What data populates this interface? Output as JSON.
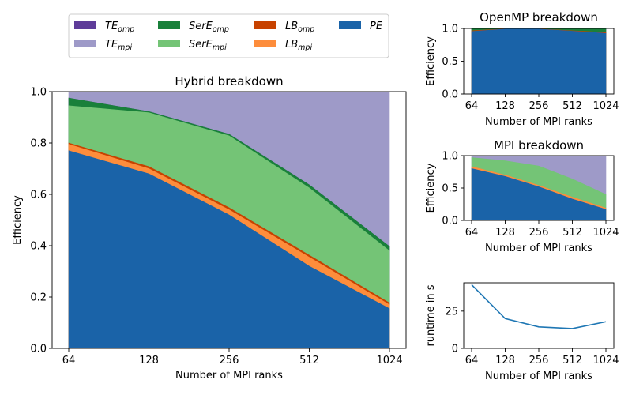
{
  "colors": {
    "TE_omp": "#5e3c99",
    "TE_mpi": "#9e9ac8",
    "SerE_omp": "#19803a",
    "SerE_mpi": "#74c476",
    "LB_omp": "#c74200",
    "LB_mpi": "#fd8d3c",
    "PE": "#1a63a8",
    "runtime": "#1f77b4"
  },
  "legend": {
    "items": [
      {
        "key": "TE_omp",
        "main": "TE",
        "sub": "omp"
      },
      {
        "key": "TE_mpi",
        "main": "TE",
        "sub": "mpi"
      },
      {
        "key": "SerE_omp",
        "main": "SerE",
        "sub": "omp"
      },
      {
        "key": "SerE_mpi",
        "main": "SerE",
        "sub": "mpi"
      },
      {
        "key": "LB_omp",
        "main": "LB",
        "sub": "omp"
      },
      {
        "key": "LB_mpi",
        "main": "LB",
        "sub": "mpi"
      },
      {
        "key": "PE",
        "main": "PE",
        "sub": ""
      }
    ]
  },
  "chart_data": [
    {
      "id": "hybrid",
      "type": "area",
      "title": "Hybrid breakdown",
      "xlabel": "Number of MPI ranks",
      "ylabel": "Efficiency",
      "categories": [
        "64",
        "128",
        "256",
        "512",
        "1024"
      ],
      "ylim": [
        0,
        1.0
      ],
      "yticks": [
        "0.0",
        "0.2",
        "0.4",
        "0.6",
        "0.8",
        "1.0"
      ],
      "ytick_values": [
        0,
        0.2,
        0.4,
        0.6,
        0.8,
        1.0
      ],
      "stack_tops": [
        {
          "name": "TE_mpi",
          "values": [
            1.0,
            1.0,
            1.0,
            1.0,
            1.0
          ]
        },
        {
          "name": "TE_omp",
          "values": [
            0.975,
            0.922,
            0.834,
            0.637,
            0.397
          ]
        },
        {
          "name": "SerE_omp",
          "values": [
            0.975,
            0.922,
            0.834,
            0.637,
            0.397
          ]
        },
        {
          "name": "SerE_mpi",
          "values": [
            0.945,
            0.918,
            0.828,
            0.625,
            0.38
          ]
        },
        {
          "name": "LB_omp",
          "values": [
            0.8,
            0.708,
            0.548,
            0.363,
            0.177
          ]
        },
        {
          "name": "LB_mpi",
          "values": [
            0.795,
            0.7,
            0.54,
            0.355,
            0.17
          ]
        },
        {
          "name": "PE",
          "values": [
            0.77,
            0.68,
            0.52,
            0.32,
            0.155
          ]
        }
      ],
      "grid": false
    },
    {
      "id": "openmp",
      "type": "area",
      "title": "OpenMP breakdown",
      "xlabel": "Number of MPI ranks",
      "ylabel": "Efficiency",
      "categories": [
        "64",
        "128",
        "256",
        "512",
        "1024"
      ],
      "ylim": [
        0,
        1.0
      ],
      "yticks": [
        "0.0",
        "0.5",
        "1.0"
      ],
      "ytick_values": [
        0,
        0.5,
        1.0
      ],
      "stack_tops": [
        {
          "name": "TE_omp",
          "values": [
            1.0,
            1.0,
            1.0,
            1.0,
            1.0
          ]
        },
        {
          "name": "SerE_omp",
          "values": [
            0.995,
            0.998,
            0.998,
            0.99,
            0.99
          ]
        },
        {
          "name": "LB_omp",
          "values": [
            0.965,
            0.993,
            0.993,
            0.965,
            0.94
          ]
        },
        {
          "name": "PE",
          "values": [
            0.955,
            0.99,
            0.99,
            0.958,
            0.925
          ]
        }
      ],
      "grid": false
    },
    {
      "id": "mpi",
      "type": "area",
      "title": "MPI breakdown",
      "xlabel": "Number of MPI ranks",
      "ylabel": "Efficiency",
      "categories": [
        "64",
        "128",
        "256",
        "512",
        "1024"
      ],
      "ylim": [
        0,
        1.0
      ],
      "yticks": [
        "0.0",
        "0.5",
        "1.0"
      ],
      "ytick_values": [
        0,
        0.5,
        1.0
      ],
      "stack_tops": [
        {
          "name": "TE_mpi",
          "values": [
            1.0,
            1.0,
            1.0,
            1.0,
            1.0
          ]
        },
        {
          "name": "SerE_mpi",
          "values": [
            0.97,
            0.92,
            0.84,
            0.64,
            0.4
          ]
        },
        {
          "name": "LB_mpi",
          "values": [
            0.83,
            0.7,
            0.54,
            0.36,
            0.19
          ]
        },
        {
          "name": "PE",
          "values": [
            0.8,
            0.68,
            0.52,
            0.33,
            0.17
          ]
        }
      ],
      "grid": false
    },
    {
      "id": "runtime",
      "type": "line",
      "title": "",
      "xlabel": "Number of MPI ranks",
      "ylabel": "runtime in s",
      "categories": [
        "64",
        "128",
        "256",
        "512",
        "1024"
      ],
      "ylim": [
        0,
        44
      ],
      "yticks": [
        "0",
        "25"
      ],
      "ytick_values": [
        0,
        25
      ],
      "series": [
        {
          "name": "runtime",
          "values": [
            42.7,
            20.0,
            14.4,
            13.3,
            17.9
          ]
        }
      ],
      "grid": false
    }
  ]
}
